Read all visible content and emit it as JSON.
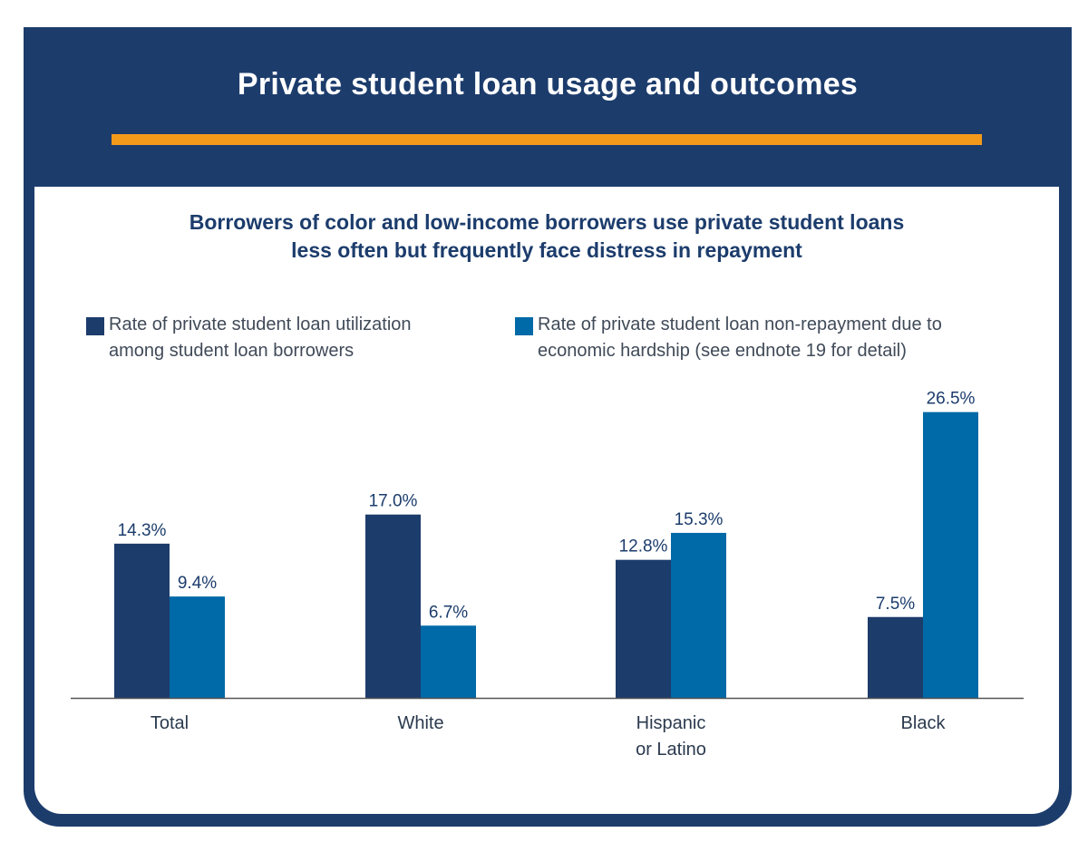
{
  "header": {
    "title": "Private student loan usage and outcomes"
  },
  "colors": {
    "header_bg": "#1c3c6c",
    "accent": "#f39a1b",
    "series_dark": "#1c3c6c",
    "series_light": "#0069a7",
    "axis": "#555555",
    "label_text": "#1c3c6c",
    "category_text": "#2b3a4e"
  },
  "chart_data": {
    "type": "bar",
    "title": "Borrowers of color and low-income borrowers use private student loans less often but frequently face distress in repayment",
    "title_lines": [
      "Borrowers of color and low-income borrowers use private student loans",
      "less often but frequently face distress in repayment"
    ],
    "categories": [
      "Total",
      "White",
      "Hispanic or Latino",
      "Black"
    ],
    "category_lines": [
      [
        "Total"
      ],
      [
        "White"
      ],
      [
        "Hispanic",
        "or Latino"
      ],
      [
        "Black"
      ]
    ],
    "series": [
      {
        "name": "Rate of private student loan utilization among student loan borrowers",
        "legend_lines": [
          "Rate of private student loan utilization",
          "among student loan borrowers"
        ],
        "values": [
          14.3,
          17.0,
          12.8,
          7.5
        ],
        "labels": [
          "14.3%",
          "17.0%",
          "12.8%",
          "7.5%"
        ]
      },
      {
        "name": "Rate of private student loan non-repayment due to economic hardship (see endnote 19 for detail)",
        "legend_lines": [
          "Rate of private student loan non-repayment due to",
          "economic hardship (see endnote 19 for detail)"
        ],
        "values": [
          9.4,
          6.7,
          15.3,
          26.5
        ],
        "labels": [
          "9.4%",
          "6.7%",
          "15.3%",
          "26.5%"
        ]
      }
    ],
    "ylim": [
      0,
      30
    ],
    "xlabel": "",
    "ylabel": "",
    "grid": false,
    "legend_position": "top"
  }
}
